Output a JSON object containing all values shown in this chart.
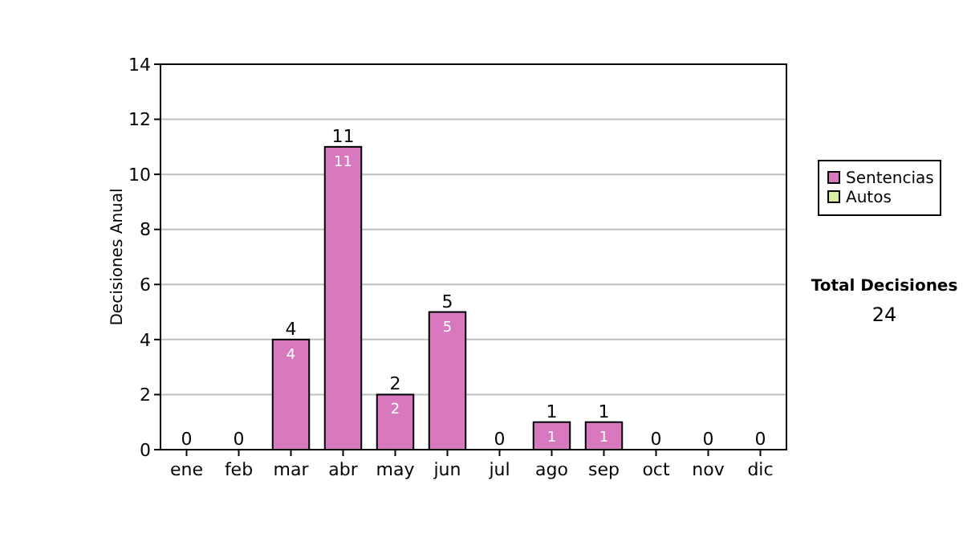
{
  "chart_data": {
    "type": "bar",
    "stacked": true,
    "ylabel": "Decisiones Anual",
    "categories": [
      "ene",
      "feb",
      "mar",
      "abr",
      "may",
      "jun",
      "jul",
      "ago",
      "sep",
      "oct",
      "nov",
      "dic"
    ],
    "series": [
      {
        "name": "Sentencias",
        "color": "#d878be",
        "values": [
          0,
          0,
          4,
          11,
          2,
          5,
          0,
          1,
          1,
          0,
          0,
          0
        ],
        "value_labels": [
          null,
          null,
          "4",
          "11",
          "2",
          "5",
          null,
          "1",
          "1",
          null,
          null,
          null
        ]
      },
      {
        "name": "Autos",
        "color": "#d8eea0",
        "values": [
          0,
          0,
          0,
          0,
          0,
          0,
          0,
          0,
          0,
          0,
          0,
          0
        ]
      }
    ],
    "totals": [
      "0",
      "0",
      "4",
      "11",
      "2",
      "5",
      "0",
      "1",
      "1",
      "0",
      "0",
      "0"
    ],
    "ylim": [
      0,
      14
    ],
    "yticks": [
      0,
      2,
      4,
      6,
      8,
      10,
      12,
      14
    ],
    "grid": "y",
    "legend": "right",
    "annotations": [
      "Total Decisiones",
      "24"
    ]
  }
}
